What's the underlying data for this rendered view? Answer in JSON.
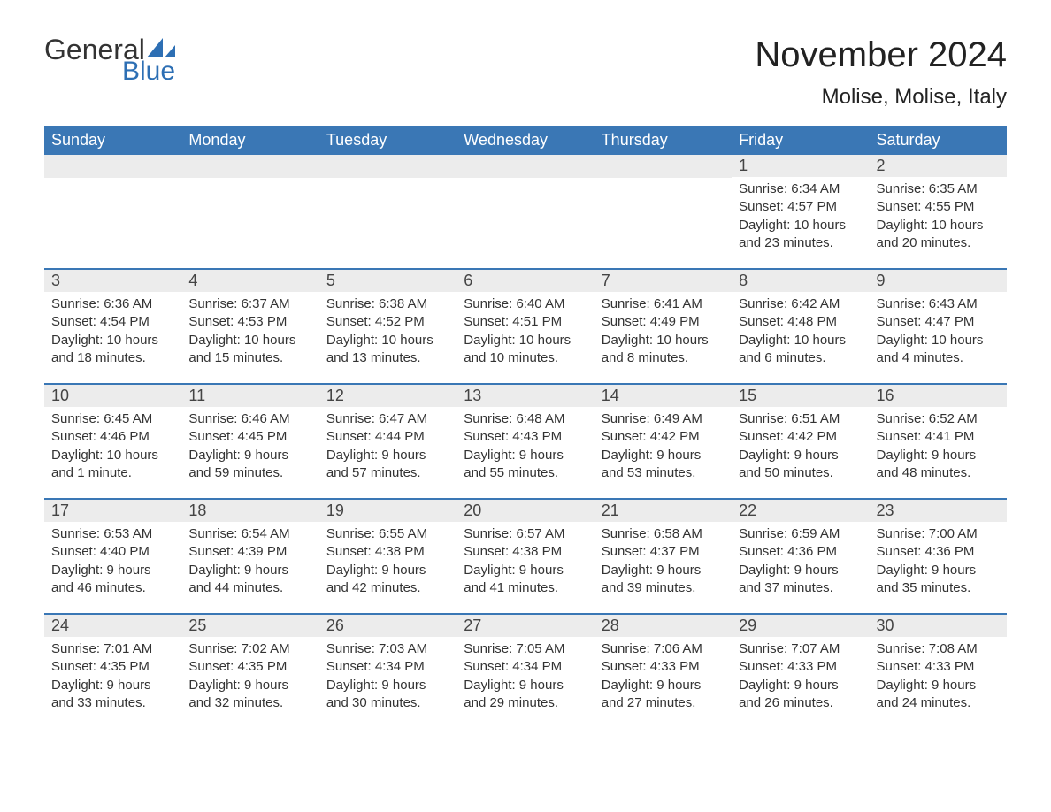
{
  "logo": {
    "line1": "General",
    "line2": "Blue",
    "brand_color": "#2d6fb4"
  },
  "title": "November 2024",
  "location": "Molise, Molise, Italy",
  "colors": {
    "header_bg": "#3a77b5",
    "header_text": "#ffffff",
    "daybar_bg": "#ececec",
    "week_border": "#3a77b5",
    "body_text": "#333333",
    "page_bg": "#ffffff"
  },
  "weekdays": [
    "Sunday",
    "Monday",
    "Tuesday",
    "Wednesday",
    "Thursday",
    "Friday",
    "Saturday"
  ],
  "labels": {
    "sunrise": "Sunrise",
    "sunset": "Sunset",
    "daylight": "Daylight"
  },
  "weeks": [
    [
      null,
      null,
      null,
      null,
      null,
      {
        "n": 1,
        "sunrise": "6:34 AM",
        "sunset": "4:57 PM",
        "daylight": "10 hours and 23 minutes."
      },
      {
        "n": 2,
        "sunrise": "6:35 AM",
        "sunset": "4:55 PM",
        "daylight": "10 hours and 20 minutes."
      }
    ],
    [
      {
        "n": 3,
        "sunrise": "6:36 AM",
        "sunset": "4:54 PM",
        "daylight": "10 hours and 18 minutes."
      },
      {
        "n": 4,
        "sunrise": "6:37 AM",
        "sunset": "4:53 PM",
        "daylight": "10 hours and 15 minutes."
      },
      {
        "n": 5,
        "sunrise": "6:38 AM",
        "sunset": "4:52 PM",
        "daylight": "10 hours and 13 minutes."
      },
      {
        "n": 6,
        "sunrise": "6:40 AM",
        "sunset": "4:51 PM",
        "daylight": "10 hours and 10 minutes."
      },
      {
        "n": 7,
        "sunrise": "6:41 AM",
        "sunset": "4:49 PM",
        "daylight": "10 hours and 8 minutes."
      },
      {
        "n": 8,
        "sunrise": "6:42 AM",
        "sunset": "4:48 PM",
        "daylight": "10 hours and 6 minutes."
      },
      {
        "n": 9,
        "sunrise": "6:43 AM",
        "sunset": "4:47 PM",
        "daylight": "10 hours and 4 minutes."
      }
    ],
    [
      {
        "n": 10,
        "sunrise": "6:45 AM",
        "sunset": "4:46 PM",
        "daylight": "10 hours and 1 minute."
      },
      {
        "n": 11,
        "sunrise": "6:46 AM",
        "sunset": "4:45 PM",
        "daylight": "9 hours and 59 minutes."
      },
      {
        "n": 12,
        "sunrise": "6:47 AM",
        "sunset": "4:44 PM",
        "daylight": "9 hours and 57 minutes."
      },
      {
        "n": 13,
        "sunrise": "6:48 AM",
        "sunset": "4:43 PM",
        "daylight": "9 hours and 55 minutes."
      },
      {
        "n": 14,
        "sunrise": "6:49 AM",
        "sunset": "4:42 PM",
        "daylight": "9 hours and 53 minutes."
      },
      {
        "n": 15,
        "sunrise": "6:51 AM",
        "sunset": "4:42 PM",
        "daylight": "9 hours and 50 minutes."
      },
      {
        "n": 16,
        "sunrise": "6:52 AM",
        "sunset": "4:41 PM",
        "daylight": "9 hours and 48 minutes."
      }
    ],
    [
      {
        "n": 17,
        "sunrise": "6:53 AM",
        "sunset": "4:40 PM",
        "daylight": "9 hours and 46 minutes."
      },
      {
        "n": 18,
        "sunrise": "6:54 AM",
        "sunset": "4:39 PM",
        "daylight": "9 hours and 44 minutes."
      },
      {
        "n": 19,
        "sunrise": "6:55 AM",
        "sunset": "4:38 PM",
        "daylight": "9 hours and 42 minutes."
      },
      {
        "n": 20,
        "sunrise": "6:57 AM",
        "sunset": "4:38 PM",
        "daylight": "9 hours and 41 minutes."
      },
      {
        "n": 21,
        "sunrise": "6:58 AM",
        "sunset": "4:37 PM",
        "daylight": "9 hours and 39 minutes."
      },
      {
        "n": 22,
        "sunrise": "6:59 AM",
        "sunset": "4:36 PM",
        "daylight": "9 hours and 37 minutes."
      },
      {
        "n": 23,
        "sunrise": "7:00 AM",
        "sunset": "4:36 PM",
        "daylight": "9 hours and 35 minutes."
      }
    ],
    [
      {
        "n": 24,
        "sunrise": "7:01 AM",
        "sunset": "4:35 PM",
        "daylight": "9 hours and 33 minutes."
      },
      {
        "n": 25,
        "sunrise": "7:02 AM",
        "sunset": "4:35 PM",
        "daylight": "9 hours and 32 minutes."
      },
      {
        "n": 26,
        "sunrise": "7:03 AM",
        "sunset": "4:34 PM",
        "daylight": "9 hours and 30 minutes."
      },
      {
        "n": 27,
        "sunrise": "7:05 AM",
        "sunset": "4:34 PM",
        "daylight": "9 hours and 29 minutes."
      },
      {
        "n": 28,
        "sunrise": "7:06 AM",
        "sunset": "4:33 PM",
        "daylight": "9 hours and 27 minutes."
      },
      {
        "n": 29,
        "sunrise": "7:07 AM",
        "sunset": "4:33 PM",
        "daylight": "9 hours and 26 minutes."
      },
      {
        "n": 30,
        "sunrise": "7:08 AM",
        "sunset": "4:33 PM",
        "daylight": "9 hours and 24 minutes."
      }
    ]
  ]
}
